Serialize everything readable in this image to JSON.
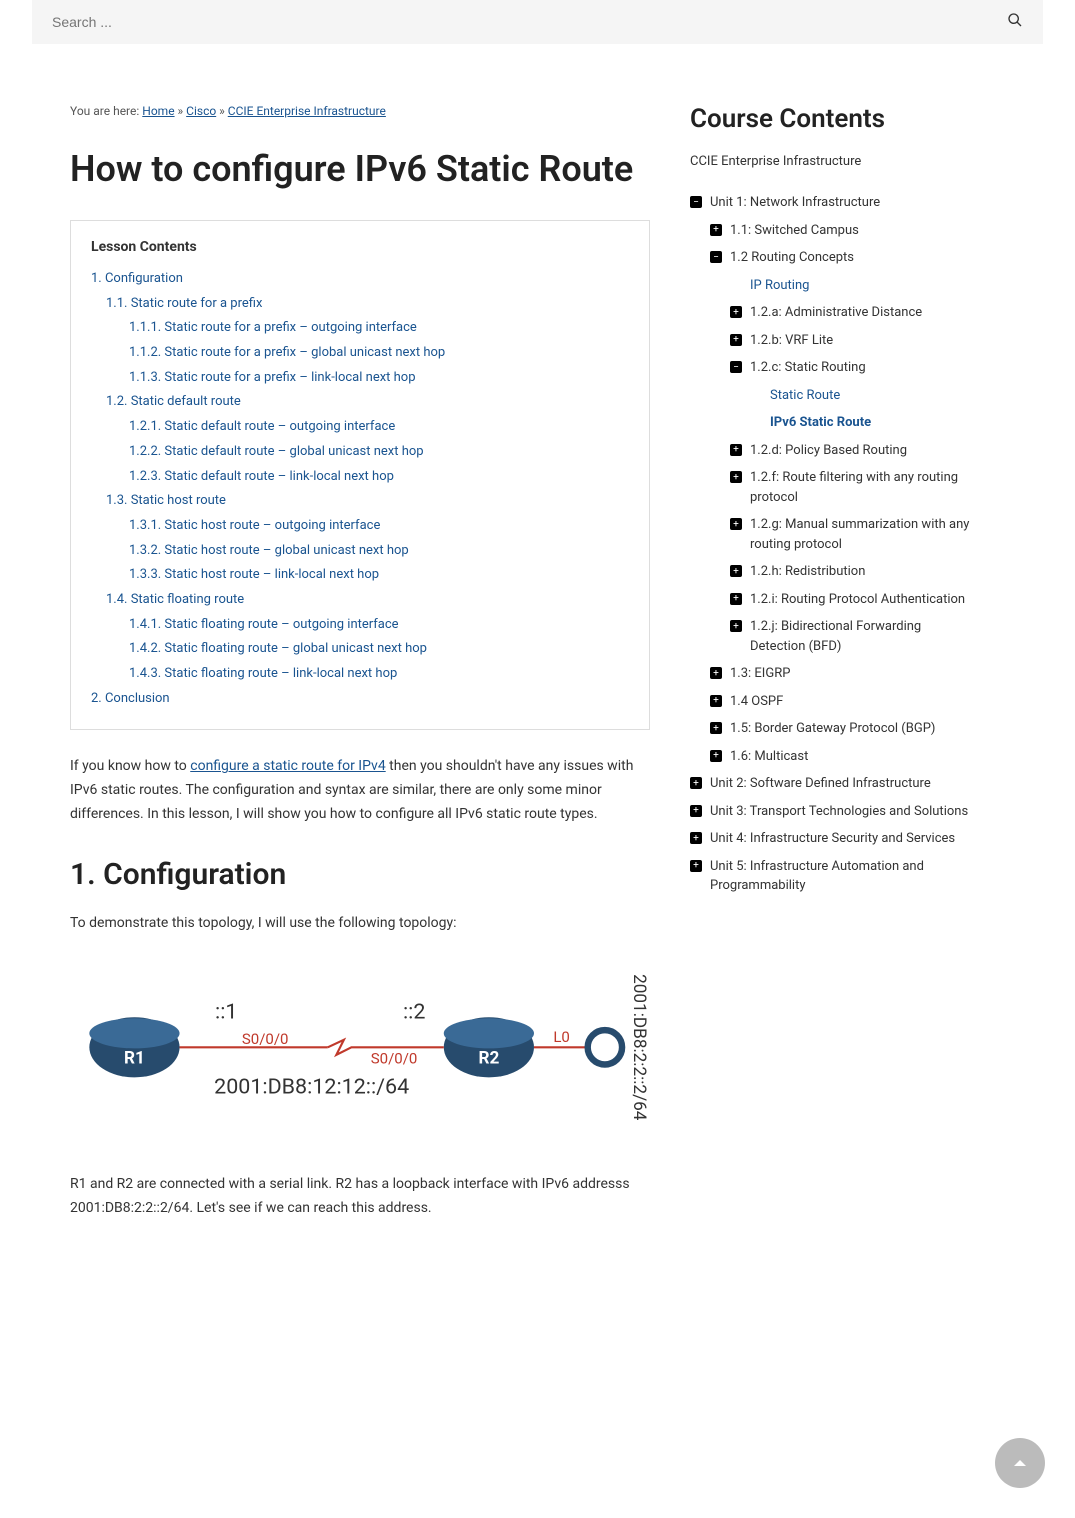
{
  "search": {
    "placeholder": "Search ..."
  },
  "breadcrumb": {
    "prefix": "You are here: ",
    "home": "Home",
    "sep": " » ",
    "cisco": "Cisco",
    "course": "CCIE Enterprise Infrastructure"
  },
  "page_title": "How to configure IPv6 Static Route",
  "toc": {
    "title": "Lesson Contents",
    "items": [
      {
        "text": "1. Configuration",
        "level": 1
      },
      {
        "text": "1.1. Static route for a prefix",
        "level": 2
      },
      {
        "text": "1.1.1. Static route for a prefix – outgoing interface",
        "level": 3
      },
      {
        "text": "1.1.2. Static route for a prefix – global unicast next hop",
        "level": 3
      },
      {
        "text": "1.1.3. Static route for a prefix – link-local next hop",
        "level": 3
      },
      {
        "text": "1.2. Static default route",
        "level": 2
      },
      {
        "text": "1.2.1. Static default route – outgoing interface",
        "level": 3
      },
      {
        "text": "1.2.2. Static default route – global unicast next hop",
        "level": 3
      },
      {
        "text": "1.2.3. Static default route – link-local next hop",
        "level": 3
      },
      {
        "text": "1.3. Static host route",
        "level": 2
      },
      {
        "text": "1.3.1. Static host route – outgoing interface",
        "level": 3
      },
      {
        "text": "1.3.2. Static host route – global unicast next hop",
        "level": 3
      },
      {
        "text": "1.3.3. Static host route – link-local next hop",
        "level": 3
      },
      {
        "text": "1.4. Static floating route",
        "level": 2
      },
      {
        "text": "1.4.1. Static floating route – outgoing interface",
        "level": 3
      },
      {
        "text": "1.4.2. Static floating route – global unicast next hop",
        "level": 3
      },
      {
        "text": "1.4.3. Static floating route – link-local next hop",
        "level": 3
      },
      {
        "text": "2. Conclusion",
        "level": 1
      }
    ]
  },
  "intro_p1a": "If you know how to ",
  "intro_link": "configure a static route for IPv4",
  "intro_p1b": " then you shouldn't have any issues with IPv6 static routes. The configuration and syntax are similar, there are only some minor differences. In this lesson, I will show you how to configure all IPv6 static route types.",
  "section1_title": "1. Configuration",
  "section1_intro": "To demonstrate this topology, I will use the following topology:",
  "topology": {
    "r1_label": "R1",
    "r2_label": "R2",
    "r1_addr": "::1",
    "r2_addr": "::2",
    "r1_if": "S0/0/0",
    "r2_if": "S0/0/0",
    "link_net": "2001:DB8:12:12::/64",
    "lo_label": "L0",
    "lo_net": "2001:DB8:2:2::2/64",
    "colors": {
      "router_fill": "#274b6d",
      "text_red": "#c0392b",
      "text_dark": "#333"
    }
  },
  "section1_after": "R1 and R2 are connected with a serial link. R2 has a loopback interface with IPv6 addresss 2001:DB8:2:2::2/64. Let's see if we can reach this address.",
  "course": {
    "title": "Course Contents",
    "subtitle": "CCIE Enterprise Infrastructure",
    "tree": [
      {
        "icon": "minus",
        "text": "Unit 1: Network Infrastructure",
        "depth": 0
      },
      {
        "icon": "plus",
        "text": "1.1: Switched Campus",
        "depth": 1
      },
      {
        "icon": "minus",
        "text": "1.2 Routing Concepts",
        "depth": 1
      },
      {
        "icon": "none",
        "text": "IP Routing",
        "depth": 2,
        "link": true
      },
      {
        "icon": "plus",
        "text": "1.2.a: Administrative Distance",
        "depth": 2
      },
      {
        "icon": "plus",
        "text": "1.2.b: VRF Lite",
        "depth": 2
      },
      {
        "icon": "minus",
        "text": "1.2.c: Static Routing",
        "depth": 2
      },
      {
        "icon": "none",
        "text": "Static Route",
        "depth": 3,
        "link": true
      },
      {
        "icon": "none",
        "text": "IPv6 Static Route",
        "depth": 3,
        "current": true
      },
      {
        "icon": "plus",
        "text": "1.2.d: Policy Based Routing",
        "depth": 2
      },
      {
        "icon": "plus",
        "text": "1.2.f: Route filtering with any routing protocol",
        "depth": 2
      },
      {
        "icon": "plus",
        "text": "1.2.g: Manual summarization with any routing protocol",
        "depth": 2
      },
      {
        "icon": "plus",
        "text": "1.2.h: Redistribution",
        "depth": 2
      },
      {
        "icon": "plus",
        "text": "1.2.i: Routing Protocol Authentication",
        "depth": 2
      },
      {
        "icon": "plus",
        "text": "1.2.j: Bidirectional Forwarding Detection (BFD)",
        "depth": 2
      },
      {
        "icon": "plus",
        "text": "1.3: EIGRP",
        "depth": 1
      },
      {
        "icon": "plus",
        "text": "1.4 OSPF",
        "depth": 1
      },
      {
        "icon": "plus",
        "text": "1.5: Border Gateway Protocol (BGP)",
        "depth": 1
      },
      {
        "icon": "plus",
        "text": "1.6: Multicast",
        "depth": 1
      },
      {
        "icon": "plus",
        "text": "Unit 2: Software Defined Infrastructure",
        "depth": 0
      },
      {
        "icon": "plus",
        "text": "Unit 3: Transport Technologies and Solutions",
        "depth": 0
      },
      {
        "icon": "plus",
        "text": "Unit 4: Infrastructure Security and Services",
        "depth": 0
      },
      {
        "icon": "plus",
        "text": "Unit 5: Infrastructure Automation and Programmability",
        "depth": 0
      }
    ]
  }
}
